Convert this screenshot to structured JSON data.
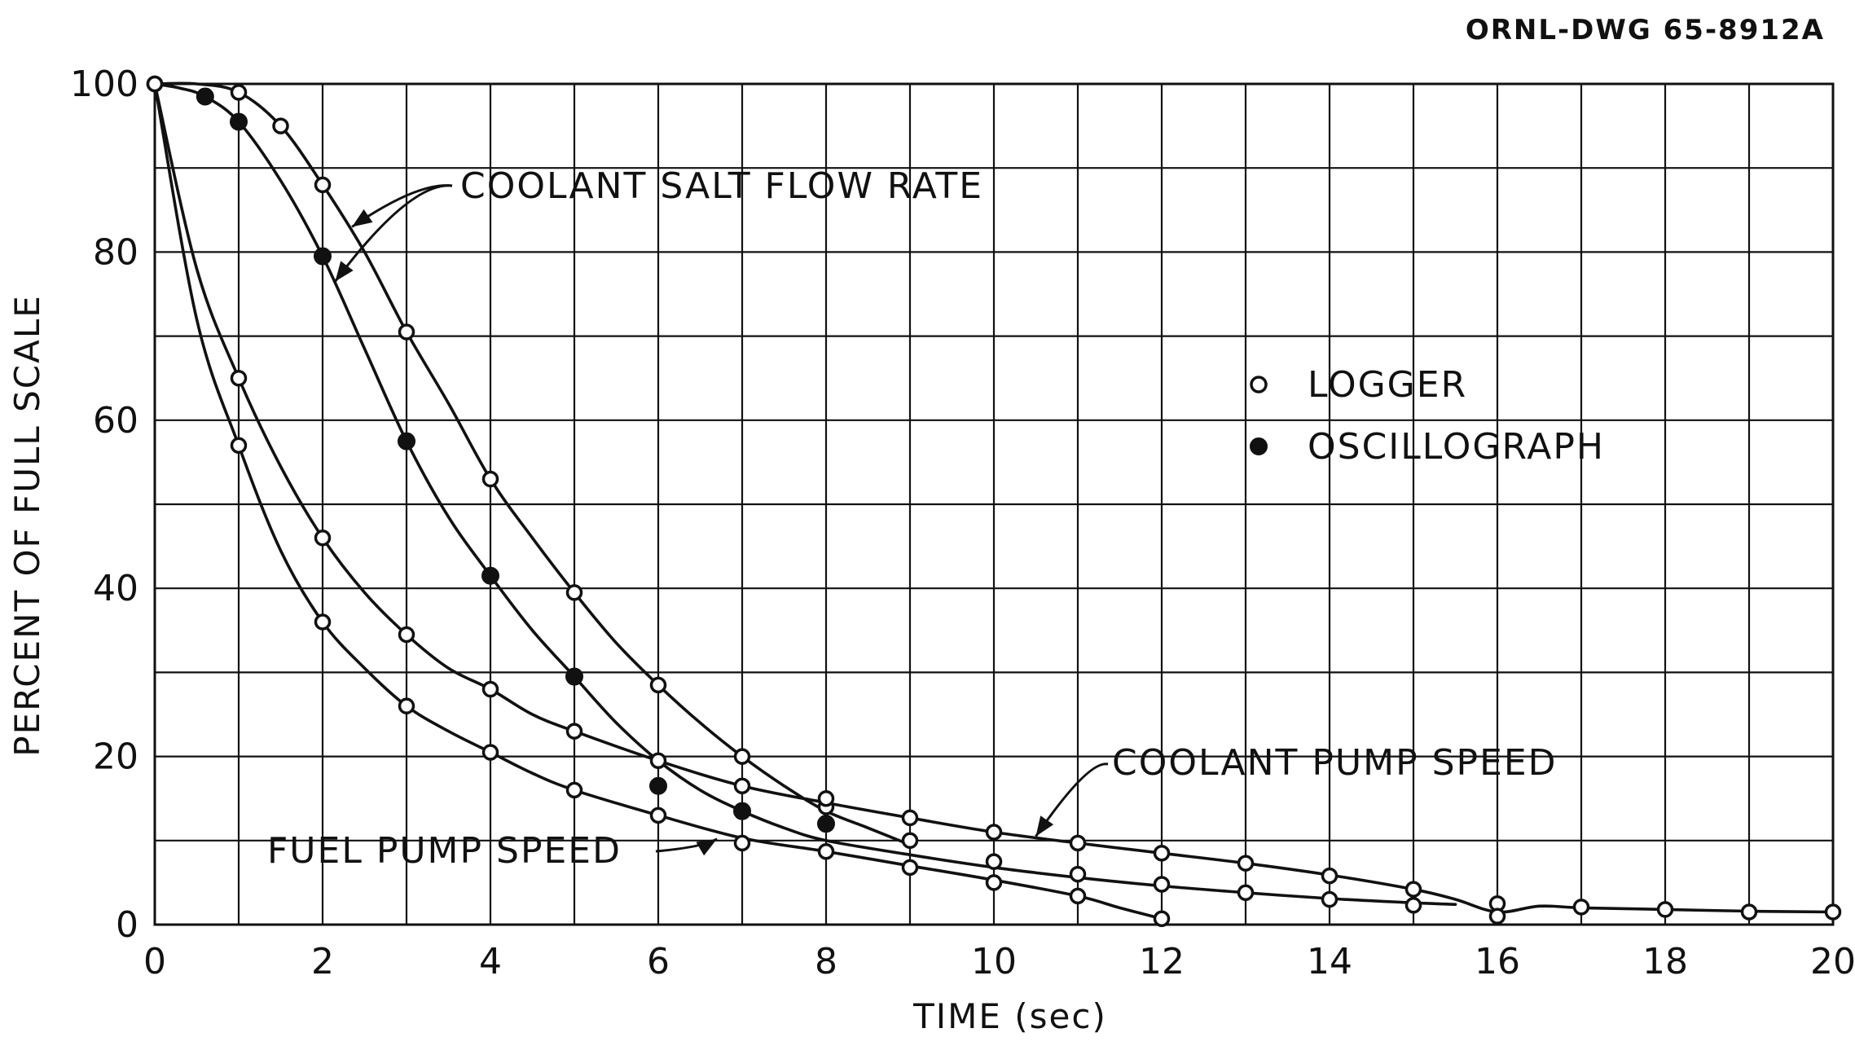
{
  "drawing_id": "ORNL-DWG 65-8912A",
  "chart_data": {
    "type": "line",
    "xlabel": "TIME (sec)",
    "ylabel": "PERCENT OF FULL SCALE",
    "xlim": [
      0,
      20
    ],
    "ylim": [
      0,
      100
    ],
    "x_ticks": [
      0,
      2,
      4,
      6,
      8,
      10,
      12,
      14,
      16,
      18,
      20
    ],
    "y_ticks": [
      0,
      20,
      40,
      60,
      80,
      100
    ],
    "x_tick_labels": [
      "0",
      "2",
      "4",
      "6",
      "8",
      "10",
      "12",
      "14",
      "16",
      "18",
      "20"
    ],
    "y_tick_labels": [
      "0",
      "20",
      "40",
      "60",
      "80",
      "100"
    ],
    "grid": true,
    "legend_position": "center-right",
    "legend": [
      {
        "marker": "open-circle",
        "label": "LOGGER"
      },
      {
        "marker": "filled-circle",
        "label": "OSCILLOGRAPH"
      }
    ],
    "annotations": [
      {
        "text": "COOLANT SALT FLOW RATE"
      },
      {
        "text": "COOLANT PUMP SPEED"
      },
      {
        "text": "FUEL PUMP SPEED"
      }
    ],
    "series": [
      {
        "curve": [
          [
            0,
            100
          ],
          [
            0.5,
            100
          ],
          [
            1,
            99
          ],
          [
            1.5,
            95
          ],
          [
            2,
            88
          ],
          [
            2.5,
            80
          ],
          [
            3,
            70.5
          ],
          [
            3.5,
            62
          ],
          [
            4,
            53
          ],
          [
            4.5,
            46
          ],
          [
            5,
            39.5
          ],
          [
            5.5,
            33.5
          ],
          [
            6,
            28.5
          ],
          [
            6.5,
            24
          ],
          [
            7,
            20
          ],
          [
            7.5,
            16.5
          ],
          [
            8,
            13.5
          ],
          [
            8.5,
            11.5
          ],
          [
            9,
            9.5
          ]
        ],
        "points": [
          {
            "x": 0,
            "y": 100,
            "marker": "open"
          },
          {
            "x": 1,
            "y": 99,
            "marker": "open"
          },
          {
            "x": 1.5,
            "y": 95,
            "marker": "open"
          },
          {
            "x": 2,
            "y": 88,
            "marker": "open"
          },
          {
            "x": 3,
            "y": 70.5,
            "marker": "open"
          },
          {
            "x": 4,
            "y": 53,
            "marker": "open"
          },
          {
            "x": 5,
            "y": 39.5,
            "marker": "open"
          },
          {
            "x": 6,
            "y": 28.5,
            "marker": "open"
          },
          {
            "x": 7,
            "y": 20,
            "marker": "open"
          },
          {
            "x": 8,
            "y": 14,
            "marker": "open"
          },
          {
            "x": 9,
            "y": 10,
            "marker": "open"
          },
          {
            "x": 10,
            "y": 7.5,
            "marker": "open"
          },
          {
            "x": 11,
            "y": 6,
            "marker": "open"
          },
          {
            "x": 12,
            "y": 4.8,
            "marker": "open"
          },
          {
            "x": 13,
            "y": 3.8,
            "marker": "open"
          },
          {
            "x": 14,
            "y": 3,
            "marker": "open"
          },
          {
            "x": 15,
            "y": 2.3,
            "marker": "open"
          }
        ]
      },
      {
        "curve": [
          [
            0,
            100
          ],
          [
            0.3,
            99.5
          ],
          [
            0.6,
            98.5
          ],
          [
            1,
            95.5
          ],
          [
            1.5,
            88.5
          ],
          [
            2,
            79.5
          ],
          [
            2.5,
            68.5
          ],
          [
            3,
            57.5
          ],
          [
            3.5,
            48.5
          ],
          [
            4,
            41.5
          ],
          [
            4.5,
            35
          ],
          [
            5,
            29.5
          ],
          [
            5.5,
            24
          ],
          [
            6,
            19.5
          ],
          [
            6.5,
            16
          ],
          [
            7,
            13.5
          ],
          [
            7.5,
            11.5
          ],
          [
            8,
            10
          ],
          [
            9,
            8.3
          ],
          [
            10,
            6.8
          ],
          [
            11,
            5.6
          ],
          [
            12,
            4.6
          ],
          [
            13,
            3.8
          ],
          [
            14,
            3.1
          ],
          [
            15,
            2.6
          ],
          [
            15.5,
            2.4
          ]
        ],
        "points": [
          {
            "x": 0.6,
            "y": 98.5,
            "marker": "filled"
          },
          {
            "x": 1,
            "y": 95.5,
            "marker": "filled"
          },
          {
            "x": 2,
            "y": 79.5,
            "marker": "filled"
          },
          {
            "x": 3,
            "y": 57.5,
            "marker": "filled"
          },
          {
            "x": 4,
            "y": 41.5,
            "marker": "filled"
          },
          {
            "x": 5,
            "y": 29.5,
            "marker": "filled"
          },
          {
            "x": 6,
            "y": 16.5,
            "marker": "filled"
          },
          {
            "x": 7,
            "y": 13.5,
            "marker": "filled"
          },
          {
            "x": 8,
            "y": 12,
            "marker": "filled"
          }
        ]
      },
      {
        "curve": [
          [
            0,
            100
          ],
          [
            0.5,
            78
          ],
          [
            1,
            65
          ],
          [
            1.5,
            54.5
          ],
          [
            2,
            46
          ],
          [
            2.5,
            39.5
          ],
          [
            3,
            34.5
          ],
          [
            3.5,
            30.5
          ],
          [
            4,
            28
          ],
          [
            4.5,
            25
          ],
          [
            5,
            23
          ],
          [
            6,
            19.5
          ],
          [
            7,
            16.5
          ],
          [
            8,
            14.5
          ],
          [
            9,
            12.7
          ],
          [
            10,
            11
          ],
          [
            11,
            9.7
          ],
          [
            12,
            8.5
          ],
          [
            13,
            7.3
          ],
          [
            14,
            5.9
          ],
          [
            15,
            4.2
          ],
          [
            15.5,
            3
          ],
          [
            16,
            1.5
          ],
          [
            16.5,
            2.2
          ],
          [
            17,
            2
          ],
          [
            18,
            1.8
          ],
          [
            19,
            1.6
          ],
          [
            20,
            1.5
          ]
        ],
        "points": [
          {
            "x": 0,
            "y": 100,
            "marker": "open"
          },
          {
            "x": 1,
            "y": 65,
            "marker": "open"
          },
          {
            "x": 2,
            "y": 46,
            "marker": "open"
          },
          {
            "x": 3,
            "y": 34.5,
            "marker": "open"
          },
          {
            "x": 4,
            "y": 28,
            "marker": "open"
          },
          {
            "x": 5,
            "y": 23,
            "marker": "open"
          },
          {
            "x": 6,
            "y": 19.5,
            "marker": "open"
          },
          {
            "x": 7,
            "y": 16.5,
            "marker": "open"
          },
          {
            "x": 8,
            "y": 15,
            "marker": "open"
          },
          {
            "x": 9,
            "y": 12.7,
            "marker": "open"
          },
          {
            "x": 10,
            "y": 11,
            "marker": "open"
          },
          {
            "x": 11,
            "y": 9.7,
            "marker": "open"
          },
          {
            "x": 12,
            "y": 8.5,
            "marker": "open"
          },
          {
            "x": 13,
            "y": 7.3,
            "marker": "open"
          },
          {
            "x": 14,
            "y": 5.8,
            "marker": "open"
          },
          {
            "x": 15,
            "y": 4.2,
            "marker": "open"
          },
          {
            "x": 16,
            "y": 2.5,
            "marker": "open"
          },
          {
            "x": 17,
            "y": 2.1,
            "marker": "open"
          },
          {
            "x": 18,
            "y": 1.8,
            "marker": "open"
          },
          {
            "x": 19,
            "y": 1.5,
            "marker": "open"
          },
          {
            "x": 20,
            "y": 1.5,
            "marker": "open"
          }
        ]
      },
      {
        "curve": [
          [
            0,
            100
          ],
          [
            0.5,
            72
          ],
          [
            1,
            57
          ],
          [
            1.5,
            44.5
          ],
          [
            2,
            36
          ],
          [
            2.5,
            30.5
          ],
          [
            3,
            26
          ],
          [
            3.5,
            23
          ],
          [
            4,
            20.5
          ],
          [
            4.5,
            18
          ],
          [
            5,
            16
          ],
          [
            6,
            13
          ],
          [
            7,
            10.3
          ],
          [
            8,
            8.7
          ],
          [
            9,
            7
          ],
          [
            10,
            5.3
          ],
          [
            11,
            3.4
          ],
          [
            11.5,
            2
          ],
          [
            12,
            0.7
          ]
        ],
        "points": [
          {
            "x": 0,
            "y": 100,
            "marker": "open"
          },
          {
            "x": 1,
            "y": 57,
            "marker": "open"
          },
          {
            "x": 2,
            "y": 36,
            "marker": "open"
          },
          {
            "x": 3,
            "y": 26,
            "marker": "open"
          },
          {
            "x": 4,
            "y": 20.5,
            "marker": "open"
          },
          {
            "x": 5,
            "y": 16,
            "marker": "open"
          },
          {
            "x": 6,
            "y": 13,
            "marker": "open"
          },
          {
            "x": 7,
            "y": 9.7,
            "marker": "open"
          },
          {
            "x": 8,
            "y": 8.7,
            "marker": "open"
          },
          {
            "x": 9,
            "y": 6.8,
            "marker": "open"
          },
          {
            "x": 10,
            "y": 5,
            "marker": "open"
          },
          {
            "x": 11,
            "y": 3.4,
            "marker": "open"
          },
          {
            "x": 12,
            "y": 0.7,
            "marker": "open"
          },
          {
            "x": 16,
            "y": 1,
            "marker": "open"
          }
        ]
      }
    ]
  }
}
